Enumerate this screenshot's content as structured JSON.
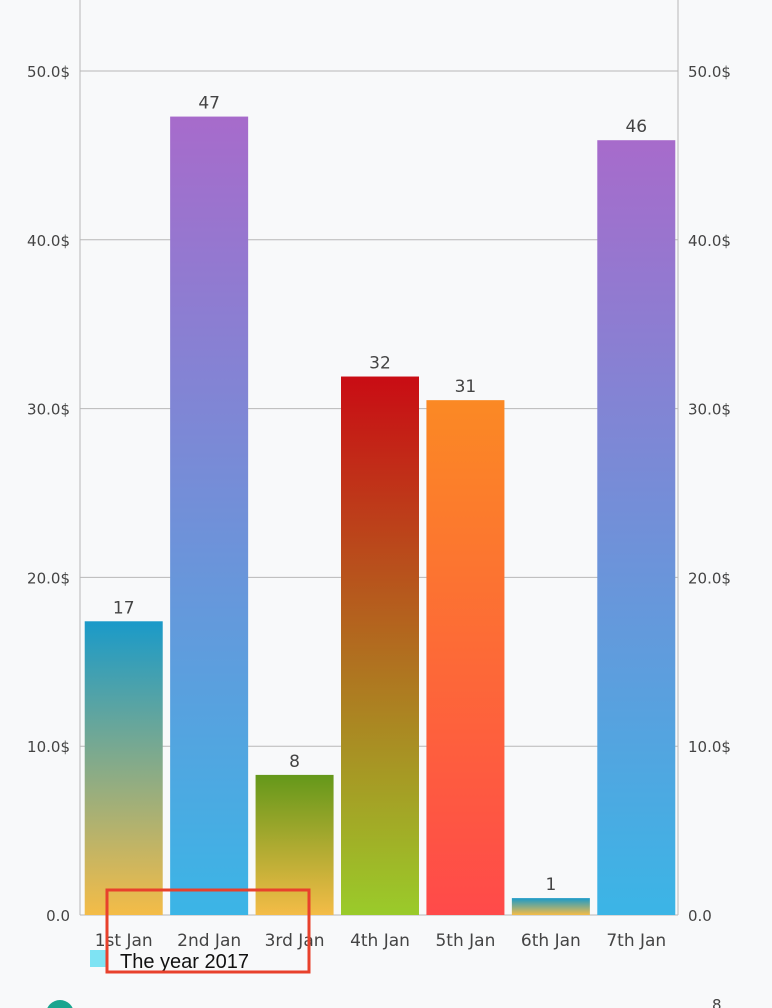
{
  "chart_data": {
    "type": "bar",
    "categories": [
      "1st Jan",
      "2nd Jan",
      "3rd Jan",
      "4th Jan",
      "5th Jan",
      "6th Jan",
      "7th Jan"
    ],
    "values": [
      17.4,
      47.3,
      8.3,
      31.9,
      30.5,
      1,
      45.9
    ],
    "data_labels": [
      "17",
      "47",
      "8",
      "32",
      "31",
      "1",
      "46"
    ],
    "y_ticks": [
      "0.0",
      "10.0$",
      "20.0$",
      "30.0$",
      "40.0$",
      "50.0$"
    ],
    "y_tick_values": [
      0,
      10,
      20,
      30,
      40,
      50
    ],
    "ylim": [
      0,
      55
    ],
    "left_axis": true,
    "right_axis": true,
    "grid": true,
    "legend": {
      "label": "The year 2017",
      "color": "#7ee3f3",
      "position": "bottom-left"
    },
    "highlighted_category_index": 1,
    "highlight_color": "#e8413a",
    "bar_gradients": [
      [
        "#f4bc47",
        "#1a9ac9"
      ],
      [
        "#3bb5e6",
        "#a76bcb"
      ],
      [
        "#f4bc47",
        "#64981a"
      ],
      [
        "#9acb2a",
        "#c90c14"
      ],
      [
        "#ff4a4a",
        "#fb8924"
      ],
      [
        "#f4bc47",
        "#1a9ac9"
      ],
      [
        "#3bb5e6",
        "#a76bcb"
      ]
    ],
    "title": "",
    "xlabel": "",
    "ylabel": ""
  },
  "colors": {
    "gridline": "#b8b8b8",
    "axis_text": "#444444",
    "selection_box": "#e8412c"
  }
}
